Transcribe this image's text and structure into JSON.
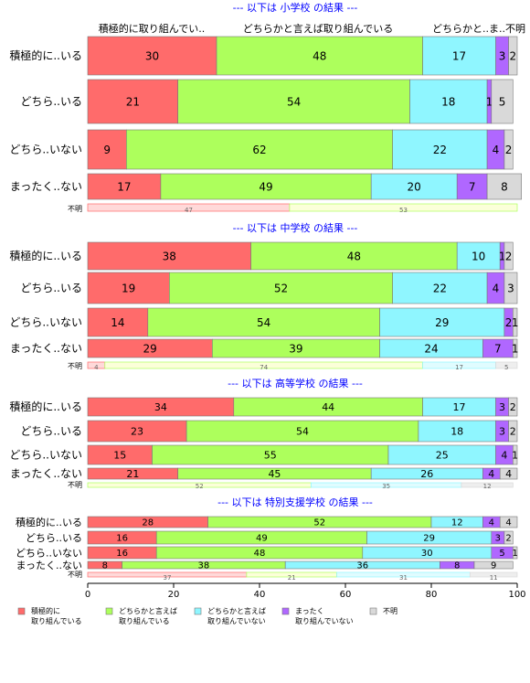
{
  "chart_data": {
    "type": "bar",
    "orientation": "horizontal",
    "stacked": "percent",
    "xlim": [
      0,
      100
    ],
    "x_ticks": [
      "0",
      "20",
      "40",
      "60",
      "80",
      "100"
    ],
    "colors": {
      "積極的に取り組んでいる": "#ff6b6b",
      "どちらかと言えば取り組んでいる": "#adff5c",
      "どちらかと言えば取り組んでいない": "#8ff6ff",
      "まったく取り組んでいない": "#b067ff",
      "不明": "#d9d9d9",
      "title": "#0000ff"
    },
    "column_labels": [
      "積極的に取り組んでい..",
      "どちらかと言えば取り組んでいる",
      "どちらかと..ま..",
      "不明"
    ],
    "legend": {
      "placement": "bottom",
      "items": [
        {
          "label": "積極的に\n取り組んでいる",
          "key": "積極的に取り組んでいる"
        },
        {
          "label": "どちらかと言えば\n取り組んでいる",
          "key": "どちらかと言えば取り組んでいる"
        },
        {
          "label": "どちらかと言えば\n取り組んでいない",
          "key": "どちらかと言えば取り組んでいない"
        },
        {
          "label": "まったく\n取り組んでいない",
          "key": "まったく取り組んでいない"
        },
        {
          "label": "不明",
          "key": "不明"
        }
      ]
    },
    "series_names": [
      "積極的に取り組んでいる",
      "どちらかと言えば取り組んでいる",
      "どちらかと言えば取り組んでいない",
      "まったく取り組んでいない",
      "不明"
    ],
    "panels": [
      {
        "title": "--- 以下は 小学校 の結果 ---",
        "rows": [
          {
            "label": "積極的に..いる",
            "values": [
              30,
              48,
              17,
              3,
              2
            ]
          },
          {
            "label": "どちら..いる",
            "values": [
              21,
              54,
              18,
              1,
              5
            ]
          },
          {
            "label": "どちら..いない",
            "values": [
              9,
              62,
              22,
              4,
              2
            ]
          },
          {
            "label": "まったく..ない",
            "values": [
              17,
              49,
              20,
              7,
              8
            ]
          }
        ],
        "unknown_row": {
          "label": "不明",
          "values": [
            47,
            53,
            0,
            0,
            0
          ]
        }
      },
      {
        "title": "--- 以下は 中学校 の結果 ---",
        "rows": [
          {
            "label": "積極的に..いる",
            "values": [
              38,
              48,
              10,
              1,
              2
            ]
          },
          {
            "label": "どちら..いる",
            "values": [
              19,
              52,
              22,
              4,
              3
            ]
          },
          {
            "label": "どちら..いない",
            "values": [
              14,
              54,
              29,
              2,
              1
            ]
          },
          {
            "label": "まったく..ない",
            "values": [
              29,
              39,
              24,
              7,
              1
            ]
          }
        ],
        "unknown_row": {
          "label": "不明",
          "values": [
            4,
            74,
            17,
            0,
            5
          ]
        }
      },
      {
        "title": "--- 以下は 高等学校 の結果 ---",
        "rows": [
          {
            "label": "積極的に..いる",
            "values": [
              34,
              44,
              17,
              3,
              2
            ]
          },
          {
            "label": "どちら..いる",
            "values": [
              23,
              54,
              18,
              3,
              2
            ]
          },
          {
            "label": "どちら..いない",
            "values": [
              15,
              55,
              25,
              4,
              1
            ]
          },
          {
            "label": "まったく..ない",
            "values": [
              21,
              45,
              26,
              4,
              4
            ]
          }
        ],
        "unknown_row": {
          "label": "不明",
          "values": [
            0,
            52,
            35,
            0,
            12
          ]
        }
      },
      {
        "title": "--- 以下は 特別支援学校 の結果 ---",
        "rows": [
          {
            "label": "積極的に..いる",
            "values": [
              28,
              52,
              12,
              4,
              4
            ]
          },
          {
            "label": "どちら..いる",
            "values": [
              16,
              49,
              29,
              3,
              2
            ]
          },
          {
            "label": "どちら..いない",
            "values": [
              16,
              48,
              30,
              5,
              1
            ]
          },
          {
            "label": "まったく..ない",
            "values": [
              8,
              38,
              36,
              8,
              9
            ]
          }
        ],
        "unknown_row": {
          "label": "不明",
          "values": [
            37,
            21,
            31,
            0,
            11
          ]
        }
      }
    ]
  }
}
